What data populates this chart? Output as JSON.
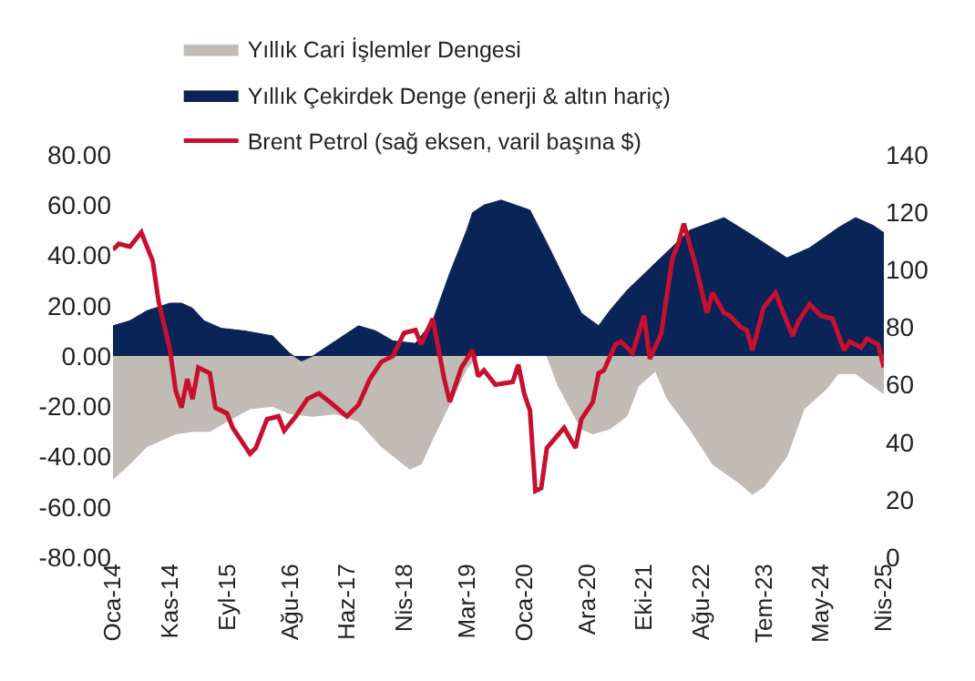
{
  "chart_data": {
    "type": "area",
    "legend": "top left",
    "grid": false,
    "marker": "none",
    "line_style": "solid",
    "xlim": [
      "2014-01",
      "2025-04"
    ],
    "xticks": [
      {
        "value": "2014-01",
        "label": "Oca-14"
      },
      {
        "value": "2014-11",
        "label": "Kas-14"
      },
      {
        "value": "2015-09",
        "label": "Eyl-15"
      },
      {
        "value": "2016-08",
        "label": "Ağu-16"
      },
      {
        "value": "2017-06",
        "label": "Haz-17"
      },
      {
        "value": "2018-04",
        "label": "Nis-18"
      },
      {
        "value": "2019-03",
        "label": "Mar-19"
      },
      {
        "value": "2020-01",
        "label": "Oca-20"
      },
      {
        "value": "2020-12",
        "label": "Ara-20"
      },
      {
        "value": "2021-10",
        "label": "Eki-21"
      },
      {
        "value": "2022-08",
        "label": "Ağu-22"
      },
      {
        "value": "2023-07",
        "label": "Tem-23"
      },
      {
        "value": "2024-05",
        "label": "May-24"
      },
      {
        "value": "2025-04",
        "label": "Nis-25"
      }
    ],
    "ylim": [
      -80,
      80
    ],
    "yticks": [
      {
        "value": -80,
        "label": "-80.00"
      },
      {
        "value": -60,
        "label": "-60.00"
      },
      {
        "value": -40,
        "label": "-40.00"
      },
      {
        "value": -20,
        "label": "-20.00"
      },
      {
        "value": 0,
        "label": "0.00"
      },
      {
        "value": 20,
        "label": "20.00"
      },
      {
        "value": 40,
        "label": "40.00"
      },
      {
        "value": 60,
        "label": "60.00"
      },
      {
        "value": 80,
        "label": "80.00"
      }
    ],
    "y2lim": [
      0,
      140
    ],
    "y2ticks": [
      0,
      20,
      40,
      60,
      80,
      100,
      120,
      140
    ],
    "series": [
      {
        "name": "Yıllık Cari İşlemler Dengesi",
        "color": "#c0bbb5",
        "x": [
          "2014-01",
          "2014-04",
          "2014-07",
          "2014-12",
          "2015-03",
          "2015-06",
          "2015-09",
          "2016-01",
          "2016-05",
          "2016-08",
          "2016-12",
          "2017-04",
          "2017-08",
          "2017-12",
          "2018-05",
          "2018-07",
          "2018-09",
          "2018-12",
          "2019-03",
          "2019-05",
          "2019-11",
          "2020-05",
          "2020-07",
          "2020-11",
          "2021-01",
          "2021-04",
          "2021-07",
          "2021-09",
          "2021-12",
          "2022-02",
          "2022-06",
          "2022-10",
          "2023-03",
          "2023-05",
          "2023-07",
          "2023-11",
          "2024-02",
          "2024-06",
          "2024-08",
          "2024-11",
          "2025-02",
          "2025-04"
        ],
        "values": [
          -49,
          -43,
          -36,
          -31,
          -30,
          -30,
          -26,
          -21,
          -20,
          -23,
          -24,
          -23,
          -26,
          -36,
          -45,
          -43,
          -33,
          -19,
          -5,
          0,
          null,
          0,
          -12,
          -29,
          -31,
          -29,
          -24,
          -12,
          -6,
          -17,
          -29,
          -43,
          -51,
          -55,
          -52,
          -40,
          -21,
          -13,
          -7,
          -7,
          -12,
          -15
        ]
      },
      {
        "name": "Yıllık Çekirdek Denge (enerji & altın hariç)",
        "color": "#0a2458",
        "x": [
          "2014-01",
          "2014-04",
          "2014-07",
          "2014-11",
          "2015-01",
          "2015-03",
          "2015-05",
          "2015-08",
          "2015-12",
          "2016-05",
          "2016-08",
          "2016-10",
          "2016-12",
          "2017-04",
          "2017-08",
          "2017-11",
          "2018-02",
          "2018-06",
          "2018-09",
          "2018-12",
          "2019-03",
          "2019-04",
          "2019-06",
          "2019-09",
          "2020-02",
          "2020-05",
          "2020-11",
          "2021-02",
          "2021-04",
          "2021-07",
          "2021-12",
          "2022-06",
          "2022-12",
          "2023-05",
          "2023-09",
          "2023-11",
          "2024-03",
          "2024-08",
          "2024-11",
          "2025-02",
          "2025-04"
        ],
        "values": [
          12,
          14,
          18,
          21,
          21,
          19,
          14,
          11,
          10,
          8,
          1,
          -2,
          0,
          6,
          12,
          10,
          6,
          5,
          14,
          33,
          50,
          57,
          60,
          62,
          58,
          45,
          17,
          12,
          18,
          26,
          37,
          50,
          55,
          48,
          42,
          39,
          43,
          51,
          55,
          52,
          49
        ]
      },
      {
        "name": "Brent Petrol (sağ eksen, varil başına $)",
        "type": "line",
        "axis": "y2",
        "color": "#c8102e",
        "x": [
          "2014-01",
          "2014-02",
          "2014-04",
          "2014-06",
          "2014-08",
          "2014-09",
          "2014-11",
          "2014-12",
          "2015-01",
          "2015-02",
          "2015-03",
          "2015-04",
          "2015-06",
          "2015-07",
          "2015-09",
          "2015-10",
          "2016-01",
          "2016-02",
          "2016-04",
          "2016-06",
          "2016-07",
          "2016-09",
          "2016-11",
          "2017-01",
          "2017-03",
          "2017-06",
          "2017-08",
          "2017-10",
          "2017-12",
          "2018-02",
          "2018-04",
          "2018-06",
          "2018-07",
          "2018-09",
          "2018-11",
          "2018-12",
          "2019-02",
          "2019-04",
          "2019-05",
          "2019-06",
          "2019-08",
          "2019-11",
          "2019-12",
          "2020-01",
          "2020-02",
          "2020-03",
          "2020-04",
          "2020-05",
          "2020-08",
          "2020-10",
          "2020-11",
          "2021-01",
          "2021-02",
          "2021-03",
          "2021-05",
          "2021-06",
          "2021-08",
          "2021-10",
          "2021-11",
          "2022-01",
          "2022-03",
          "2022-04",
          "2022-05",
          "2022-07",
          "2022-09",
          "2022-10",
          "2022-12",
          "2023-01",
          "2023-03",
          "2023-04",
          "2023-05",
          "2023-07",
          "2023-09",
          "2023-12",
          "2024-01",
          "2024-03",
          "2024-05",
          "2024-07",
          "2024-09",
          "2024-10",
          "2024-12",
          "2025-01",
          "2025-03",
          "2025-04"
        ],
        "values": [
          107,
          109,
          108,
          113,
          103,
          89,
          72,
          58,
          52,
          62,
          55,
          66,
          64,
          52,
          50,
          45,
          36,
          38,
          48,
          49,
          44,
          49,
          55,
          57,
          54,
          49,
          53,
          62,
          68,
          70,
          78,
          79,
          74,
          83,
          62,
          54,
          66,
          72,
          63,
          65,
          60,
          61,
          67,
          57,
          51,
          23,
          24,
          38,
          45,
          38,
          48,
          54,
          64,
          65,
          74,
          75,
          71,
          84,
          69,
          78,
          104,
          109,
          116,
          102,
          85,
          92,
          85,
          84,
          80,
          79,
          72,
          87,
          92,
          77,
          82,
          88,
          84,
          83,
          72,
          75,
          73,
          76,
          74,
          66
        ]
      }
    ]
  }
}
